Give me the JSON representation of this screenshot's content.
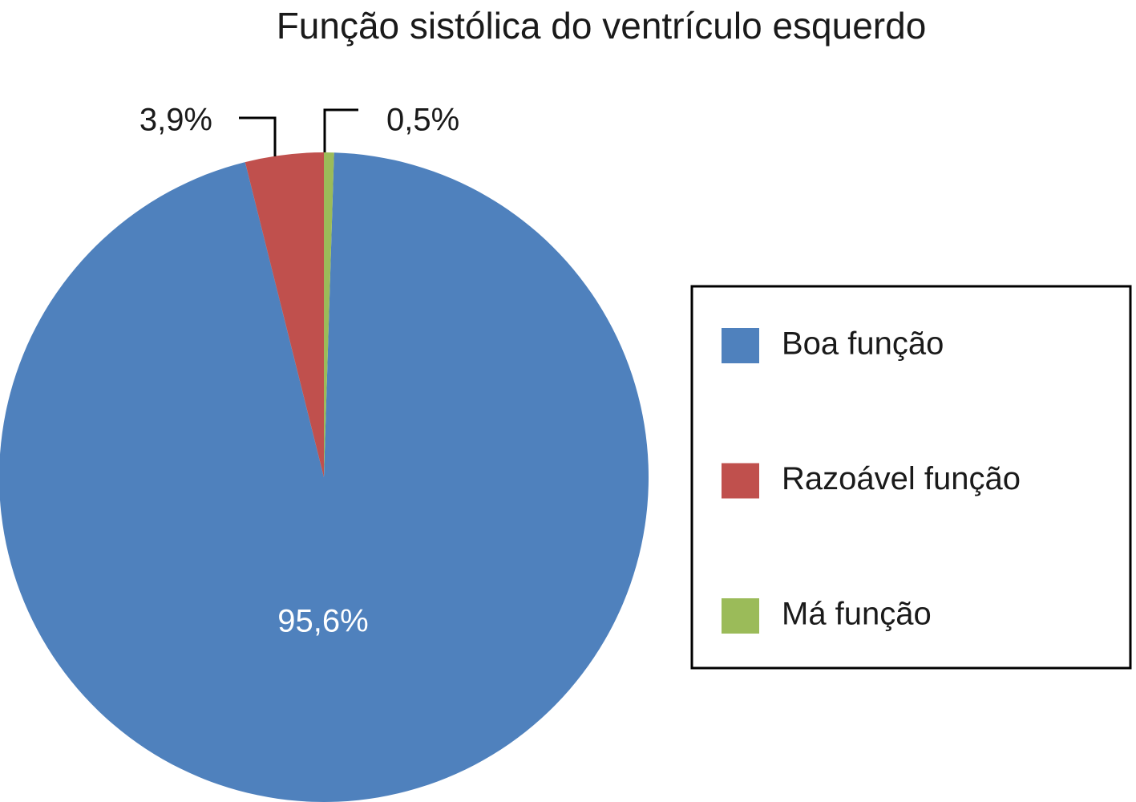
{
  "chart_data": {
    "type": "pie",
    "title": "Função sistólica do ventrículo esquerdo",
    "categories": [
      "Boa função",
      "Razoável função",
      "Má função"
    ],
    "values": [
      95.6,
      3.9,
      0.5
    ],
    "value_labels": [
      "95,6%",
      "3,9%",
      "0,5%"
    ],
    "colors": [
      "#4f81bd",
      "#c0504d",
      "#9bbb59"
    ],
    "legend": "right"
  }
}
